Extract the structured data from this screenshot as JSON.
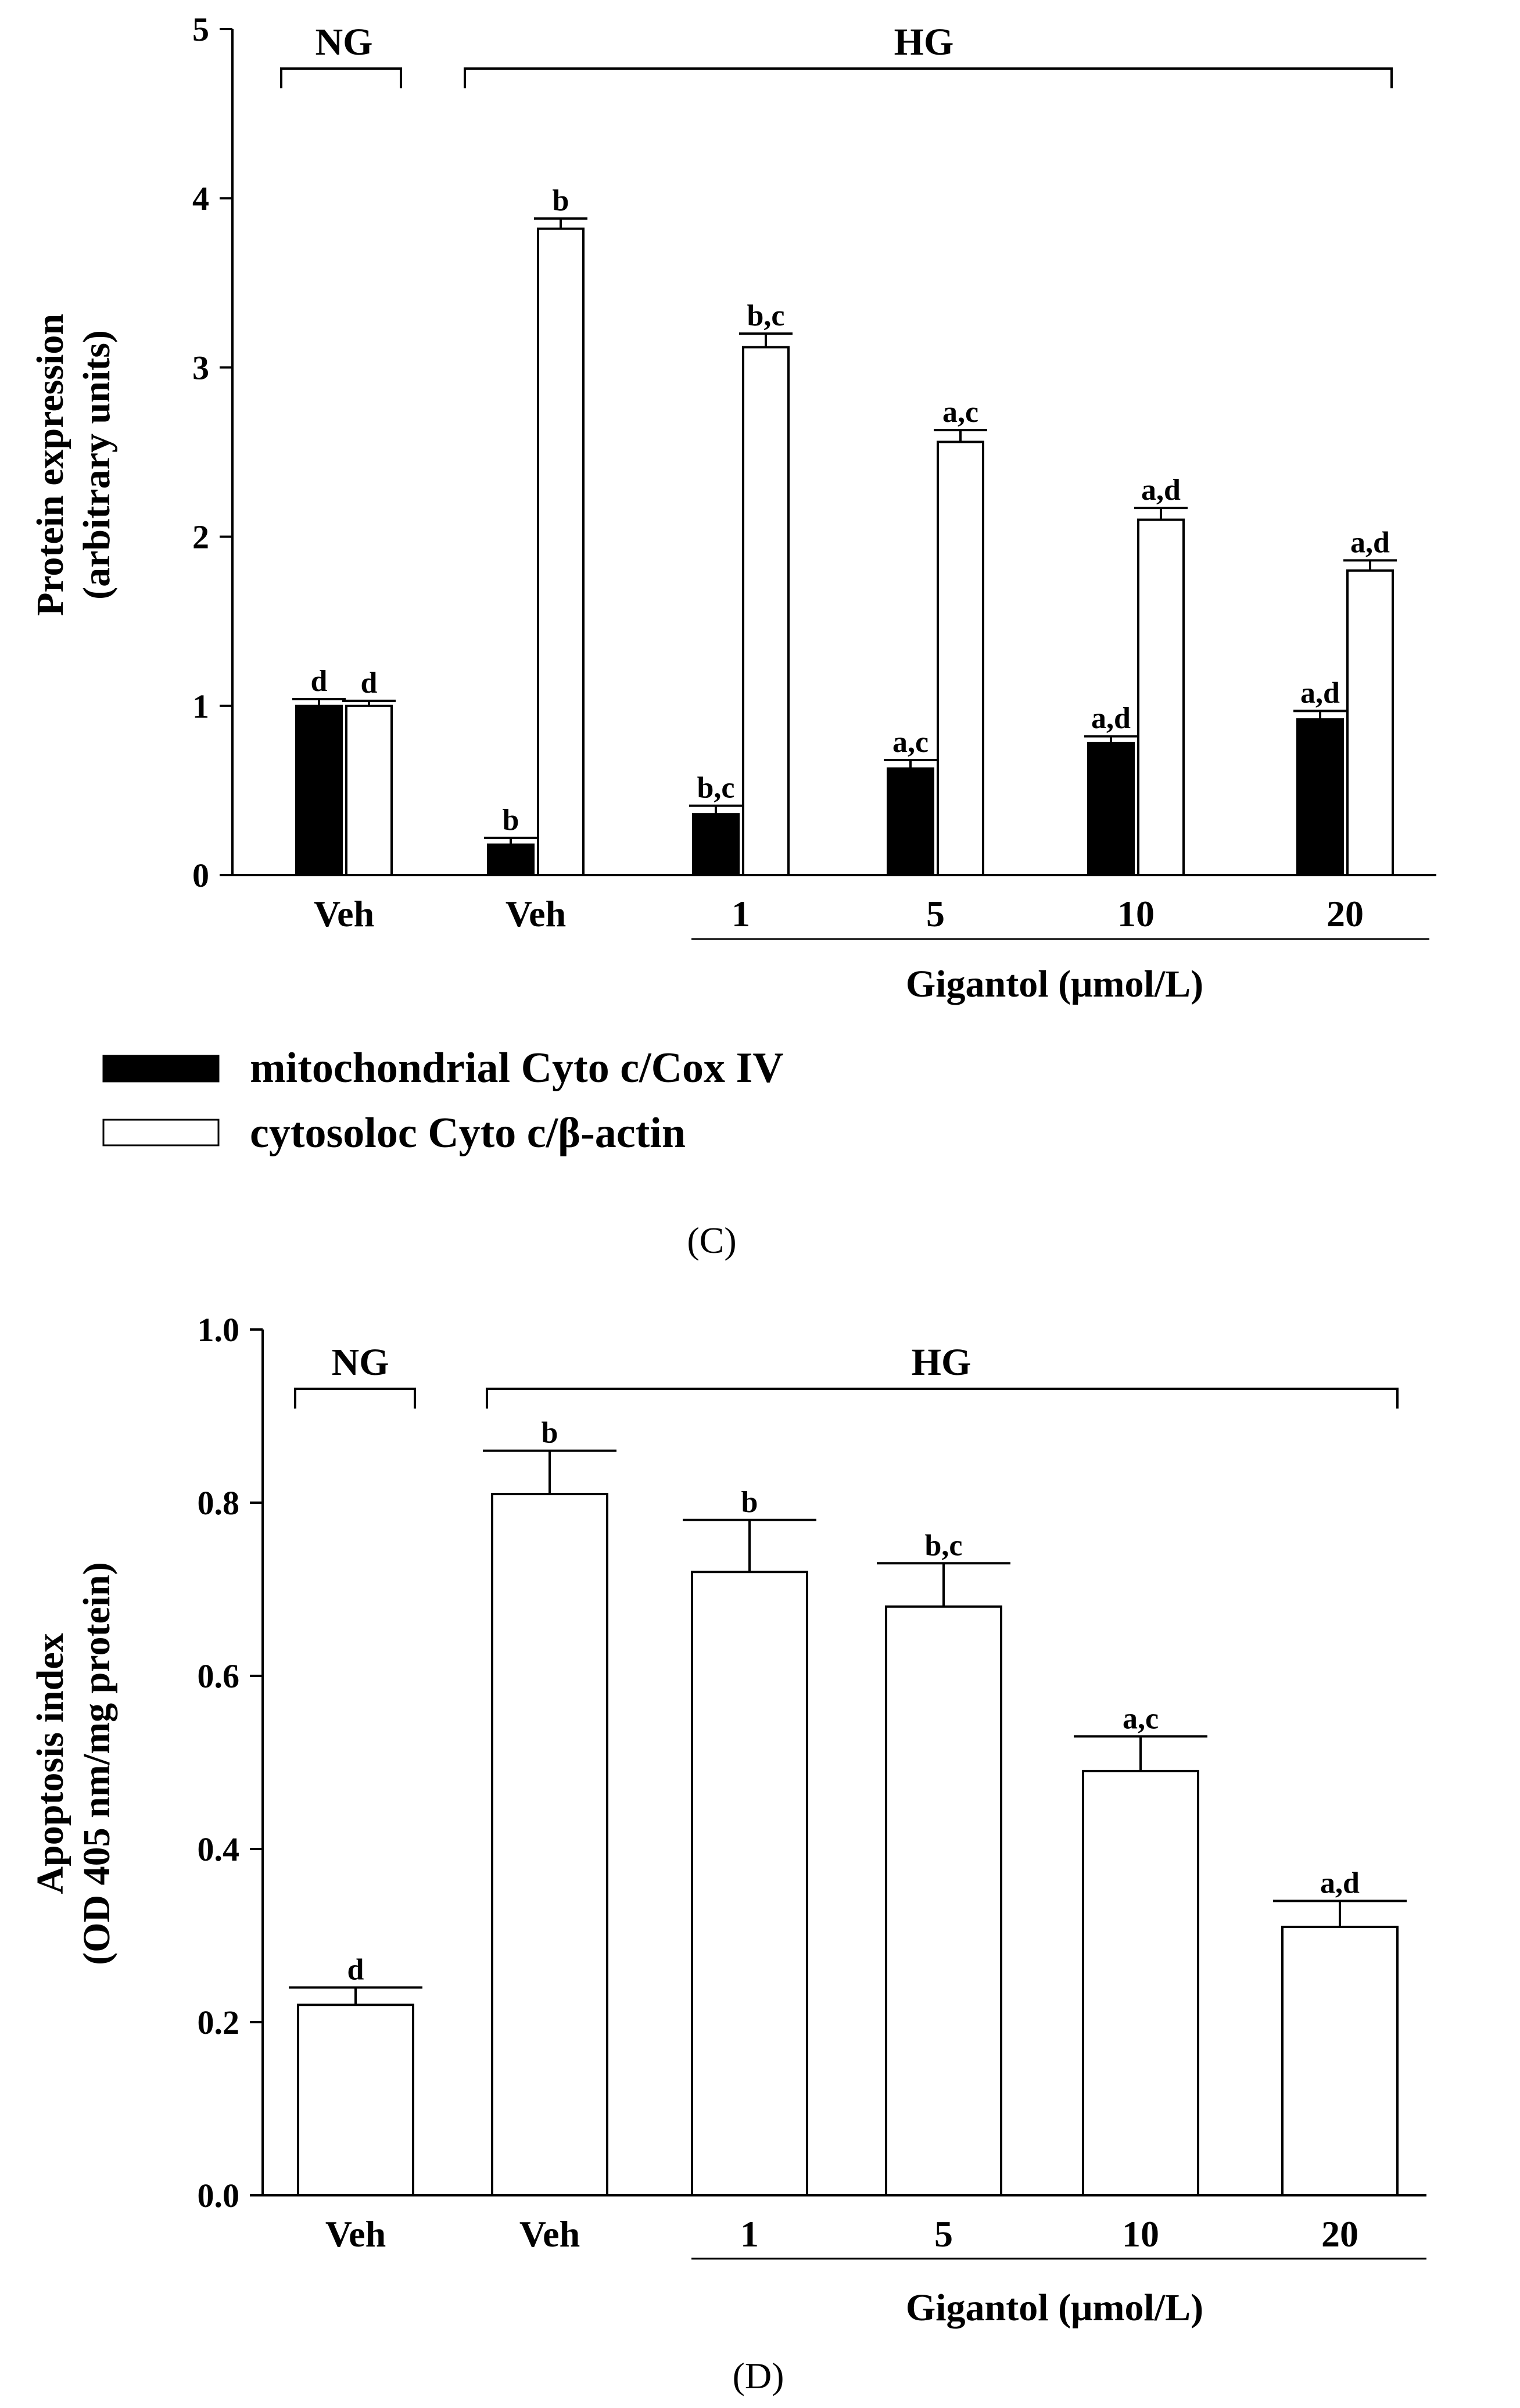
{
  "chart_data": [
    {
      "panel": "(C)",
      "type": "bar",
      "ylabel_line1": "Protein expression",
      "ylabel_line2": "(arbitrary units)",
      "ylim": [
        0,
        5
      ],
      "yticks": [
        "0",
        "1",
        "2",
        "3",
        "4",
        "5"
      ],
      "categories": [
        "Veh",
        "Veh",
        "1",
        "5",
        "10",
        "20"
      ],
      "xlabel": "Gigantol (μmol/L)",
      "group_labels": {
        "normal": "NG",
        "high": "HG"
      },
      "series": [
        {
          "name": "mitochondrial Cyto c/Cox IV",
          "color": "#000000",
          "values": [
            1.0,
            0.18,
            0.36,
            0.63,
            0.78,
            0.92
          ],
          "errors": [
            0.04,
            0.04,
            0.05,
            0.05,
            0.04,
            0.05
          ],
          "labels": [
            "d",
            "b",
            "b,c",
            "a,c",
            "a,d",
            "a,d"
          ]
        },
        {
          "name": "cytosoloc  Cyto c/β-actin",
          "color": "#ffffff",
          "values": [
            1.0,
            3.82,
            3.12,
            2.56,
            2.1,
            1.8
          ],
          "errors": [
            0.03,
            0.06,
            0.08,
            0.07,
            0.07,
            0.06
          ],
          "labels": [
            "d",
            "b",
            "b,c",
            "a,c",
            "a,d",
            "a,d"
          ]
        }
      ]
    },
    {
      "panel": "(D)",
      "type": "bar",
      "ylabel_line1": "Apoptosis index",
      "ylabel_line2": "(OD 405 nm/mg protein)",
      "ylim": [
        0,
        1.0
      ],
      "yticks": [
        "0.0",
        "0.2",
        "0.4",
        "0.6",
        "0.8",
        "1.0"
      ],
      "categories": [
        "Veh",
        "Veh",
        "1",
        "5",
        "10",
        "20"
      ],
      "xlabel": "Gigantol (μmol/L)",
      "group_labels": {
        "normal": "NG",
        "high": "HG"
      },
      "series": [
        {
          "name": "Apoptosis index",
          "color": "#ffffff",
          "values": [
            0.22,
            0.81,
            0.72,
            0.68,
            0.49,
            0.31
          ],
          "errors": [
            0.02,
            0.05,
            0.06,
            0.05,
            0.04,
            0.03
          ],
          "labels": [
            "d",
            "b",
            "b",
            "b,c",
            "a,c",
            "a,d"
          ]
        }
      ]
    }
  ]
}
